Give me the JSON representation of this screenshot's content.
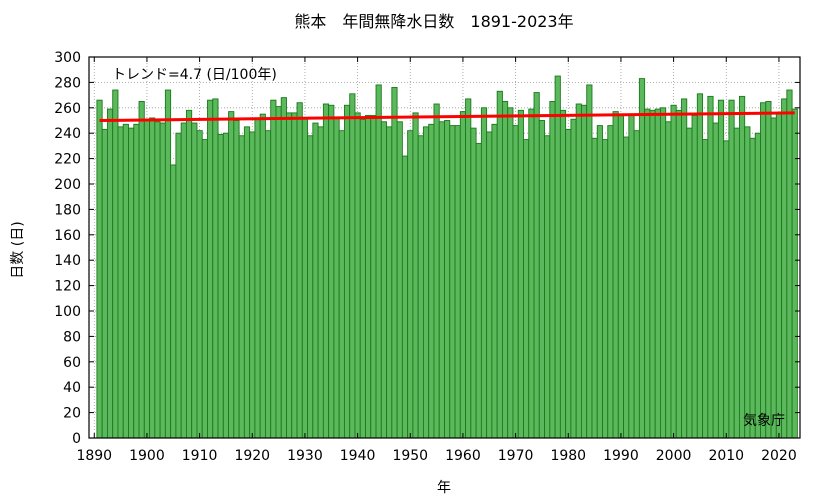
{
  "chart_data": {
    "type": "bar",
    "title": "熊本　年間無降水日数　1891-2023年",
    "xlabel": "年",
    "ylabel": "日数 (日)",
    "xlim": [
      1889,
      2024
    ],
    "ylim": [
      0,
      300
    ],
    "x_ticks": [
      1890,
      1900,
      1910,
      1920,
      1930,
      1940,
      1950,
      1960,
      1970,
      1980,
      1990,
      2000,
      2010,
      2020
    ],
    "y_ticks": [
      0,
      20,
      40,
      60,
      80,
      100,
      120,
      140,
      160,
      180,
      200,
      220,
      240,
      260,
      280,
      300
    ],
    "grid": true,
    "bar_color": "#5cb85c",
    "bar_edge_color": "#1a7a1a",
    "trend_color": "#ff0000",
    "trend": {
      "label": "トレンド=4.7 (日/100年)",
      "start": [
        1891,
        250
      ],
      "end": [
        2023,
        256
      ]
    },
    "credit": "気象庁",
    "years_start": 1891,
    "values": [
      266,
      243,
      259,
      274,
      245,
      247,
      244,
      247,
      265,
      251,
      252,
      249,
      248,
      274,
      215,
      240,
      248,
      258,
      248,
      242,
      235,
      266,
      267,
      239,
      240,
      257,
      250,
      238,
      245,
      241,
      252,
      255,
      242,
      266,
      261,
      268,
      256,
      256,
      264,
      252,
      238,
      248,
      245,
      263,
      262,
      252,
      242,
      262,
      271,
      256,
      251,
      254,
      254,
      278,
      249,
      245,
      276,
      249,
      222,
      242,
      256,
      238,
      245,
      247,
      263,
      249,
      250,
      246,
      246,
      257,
      267,
      244,
      232,
      260,
      241,
      247,
      273,
      265,
      260,
      246,
      258,
      235,
      259,
      272,
      250,
      238,
      265,
      285,
      258,
      243,
      251,
      263,
      262,
      278,
      236,
      246,
      235,
      246,
      257,
      255,
      237,
      254,
      242,
      283,
      259,
      258,
      259,
      260,
      249,
      262,
      258,
      267,
      244,
      254,
      271,
      235,
      269,
      248,
      266,
      234,
      266,
      244,
      269,
      245,
      236,
      240,
      264,
      265,
      252,
      256,
      267,
      274,
      259
    ]
  }
}
